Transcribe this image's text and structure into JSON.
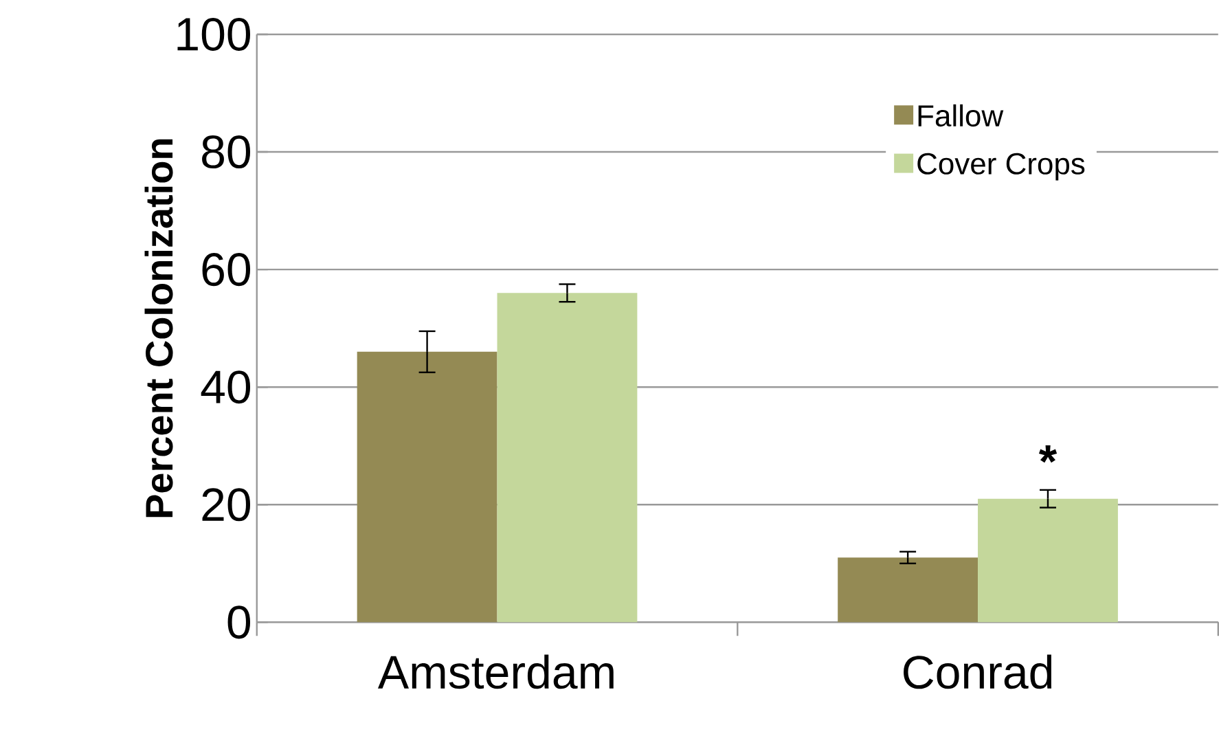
{
  "chart_data": {
    "type": "bar",
    "ylabel": "Percent Colonization",
    "categories": [
      "Amsterdam",
      "Conrad"
    ],
    "series": [
      {
        "name": "Fallow",
        "color": "#948a54",
        "values": [
          46,
          11
        ],
        "errors": [
          3.5,
          1
        ]
      },
      {
        "name": "Cover Crops",
        "color": "#c4d79b",
        "values": [
          56,
          21
        ],
        "errors": [
          1.5,
          1.5
        ]
      }
    ],
    "ylim": [
      0,
      100
    ],
    "yticks": [
      0,
      20,
      40,
      60,
      80,
      100
    ],
    "grid": "y",
    "legend": "top right",
    "annotations": [
      {
        "text": "*",
        "x": "Conrad",
        "y": 21
      }
    ]
  }
}
